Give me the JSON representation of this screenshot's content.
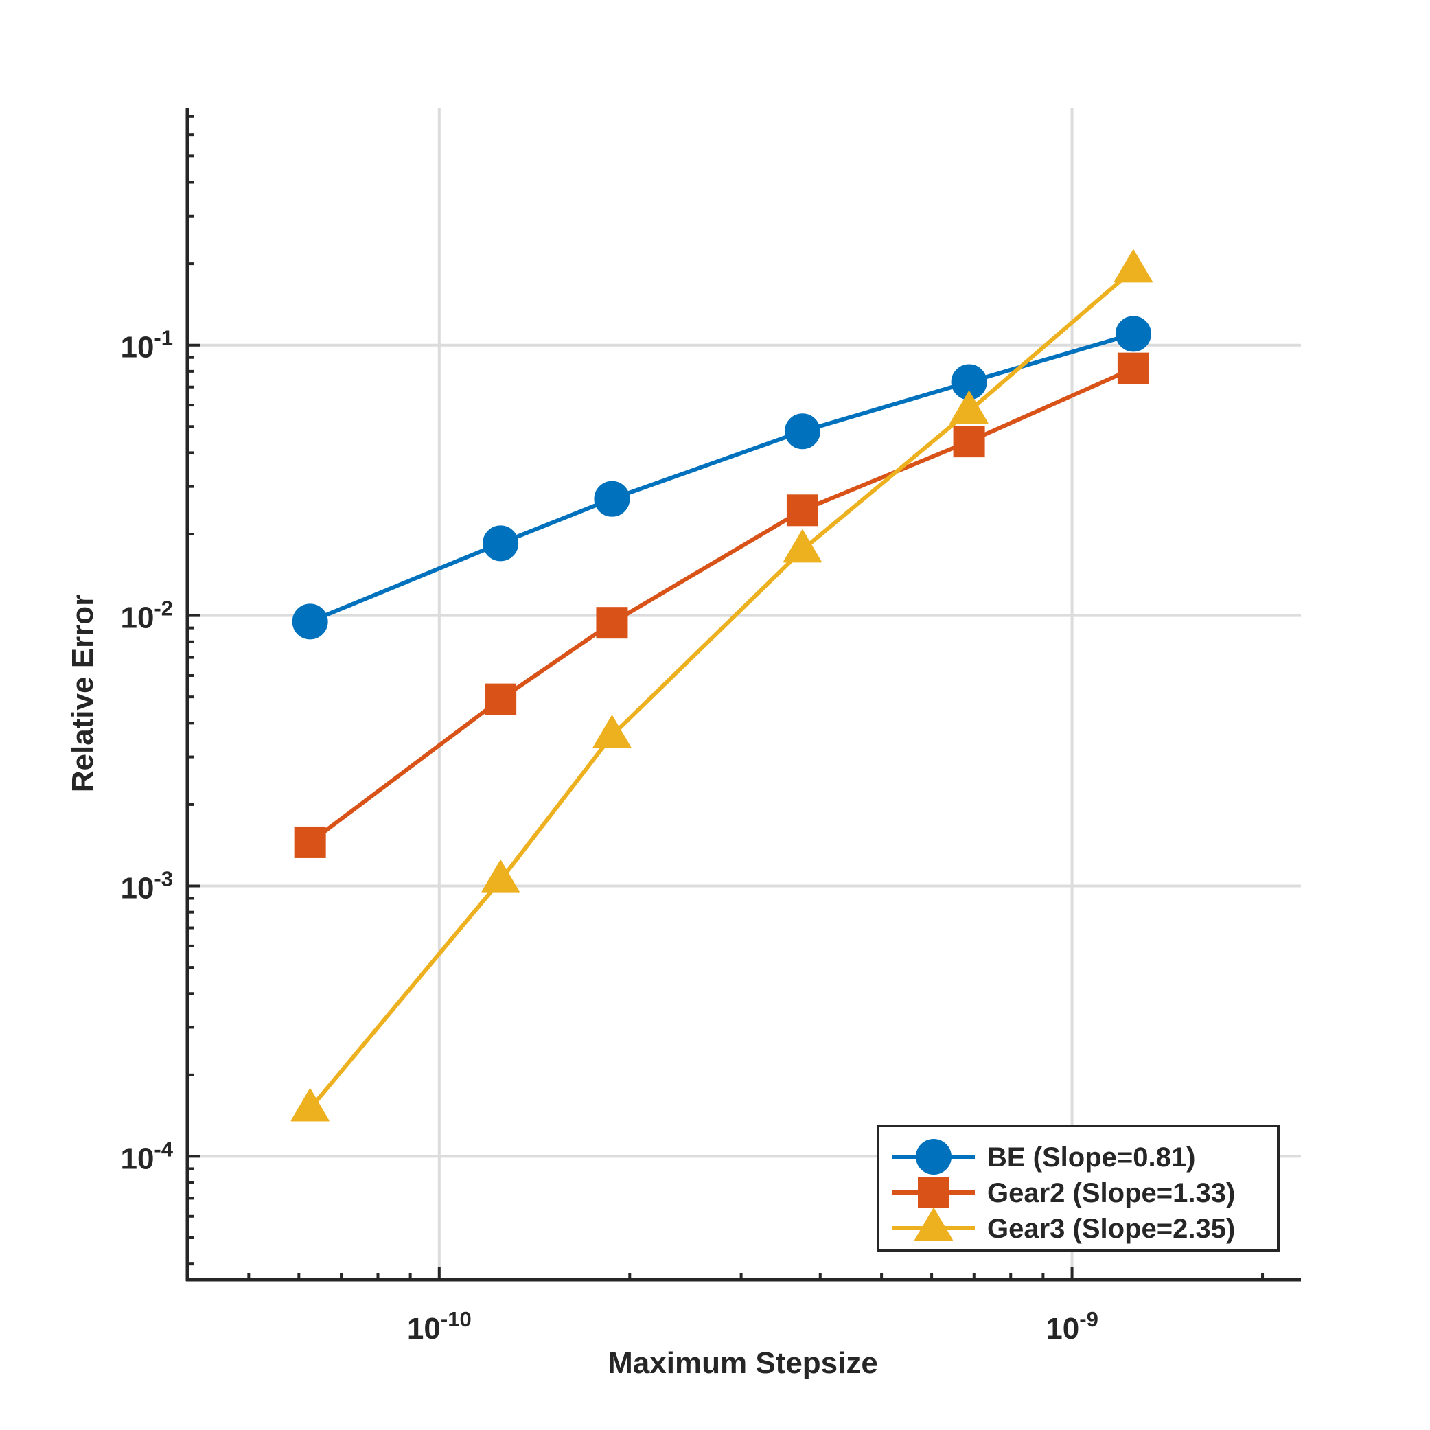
{
  "chart_data": {
    "type": "line",
    "xscale": "log",
    "yscale": "log",
    "title": "",
    "xlabel": "Maximum Stepsize",
    "ylabel": "Relative Error",
    "xlim": [
      4e-11,
      2.3e-09
    ],
    "ylim": [
      3.5e-05,
      0.75
    ],
    "grid": true,
    "x_ticks": [
      {
        "value": 1e-10,
        "base": "10",
        "exp": "-10"
      },
      {
        "value": 1e-09,
        "base": "10",
        "exp": "-9"
      }
    ],
    "y_ticks": [
      {
        "value": 0.0001,
        "base": "10",
        "exp": "-4"
      },
      {
        "value": 0.001,
        "base": "10",
        "exp": "-3"
      },
      {
        "value": 0.01,
        "base": "10",
        "exp": "-2"
      },
      {
        "value": 0.1,
        "base": "10",
        "exp": "-1"
      }
    ],
    "legend_position": "bottom-right",
    "series": [
      {
        "name": "BE (Slope=0.81)",
        "color": "#0072BD",
        "marker": "circle",
        "x": [
          6.25e-11,
          1.25e-10,
          1.875e-10,
          3.75e-10,
          6.875e-10,
          1.25e-09
        ],
        "y": [
          0.0095,
          0.0185,
          0.027,
          0.048,
          0.073,
          0.11
        ]
      },
      {
        "name": "Gear2 (Slope=1.33)",
        "color": "#D95319",
        "marker": "square",
        "x": [
          6.25e-11,
          1.25e-10,
          1.875e-10,
          3.75e-10,
          6.875e-10,
          1.25e-09
        ],
        "y": [
          0.00145,
          0.0049,
          0.0094,
          0.0245,
          0.044,
          0.082
        ]
      },
      {
        "name": "Gear3 (Slope=2.35)",
        "color": "#EDB120",
        "marker": "triangle",
        "x": [
          6.25e-11,
          1.25e-10,
          1.875e-10,
          3.75e-10,
          6.875e-10,
          1.25e-09
        ],
        "y": [
          0.00015,
          0.00105,
          0.0036,
          0.0175,
          0.057,
          0.19
        ]
      }
    ]
  }
}
